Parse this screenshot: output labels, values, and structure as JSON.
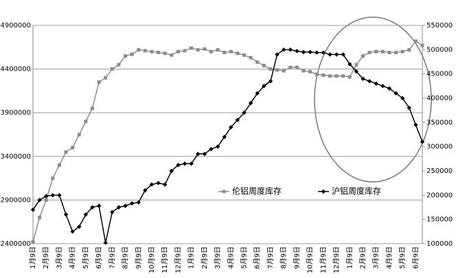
{
  "chart_data": {
    "type": "line",
    "categories": [
      "1月9日",
      null,
      "2月9日",
      null,
      "3月9日",
      null,
      "4月9日",
      null,
      "5月9日",
      null,
      "6月9日",
      null,
      "7月9日",
      null,
      "8月9日",
      null,
      "9月9日",
      null,
      "10月9日",
      null,
      "11月9日",
      null,
      "12月9日",
      null,
      "1月9日",
      null,
      "2月9日",
      null,
      "3月9日",
      null,
      "4月9日",
      null,
      "5月9日",
      null,
      "6月9日",
      null,
      "7月9日",
      null,
      "8月9日",
      null,
      "9月9日",
      null,
      "10月9日",
      null,
      "11月9日",
      null,
      "12月9日",
      null,
      "1月9日",
      null,
      "2月9日",
      null,
      "3月9日",
      null,
      "4月9日",
      null,
      "5月9日",
      null,
      "6月9日",
      null
    ],
    "series": [
      {
        "name": "伦铝周度库存",
        "color": "#8c8c8c",
        "marker": "square",
        "values": [
          2420000,
          2700000,
          2900000,
          3150000,
          3300000,
          3450000,
          3500000,
          3650000,
          3800000,
          3950000,
          4250000,
          4300000,
          4400000,
          4450000,
          4550000,
          4570000,
          4620000,
          4610000,
          4600000,
          4590000,
          4580000,
          4560000,
          4600000,
          4610000,
          4640000,
          4620000,
          4630000,
          4600000,
          4620000,
          4590000,
          4600000,
          4580000,
          4560000,
          4530000,
          4480000,
          4440000,
          4400000,
          4390000,
          4380000,
          4420000,
          4420000,
          4380000,
          4370000,
          4340000,
          4330000,
          4320000,
          4320000,
          4320000,
          4310000,
          4450000,
          4550000,
          4590000,
          4600000,
          4600000,
          4590000,
          4590000,
          4600000,
          4620000,
          4720000,
          4670000
        ]
      },
      {
        "name": "沪铝周度库存",
        "color": "#000000",
        "marker": "diamond",
        "axis": "y2",
        "values": [
          170000,
          190000,
          198000,
          200000,
          200000,
          160000,
          125000,
          135000,
          160000,
          175000,
          178000,
          102000,
          165000,
          175000,
          178000,
          183000,
          185000,
          210000,
          222000,
          225000,
          222000,
          250000,
          262000,
          265000,
          265000,
          285000,
          285000,
          295000,
          300000,
          320000,
          340000,
          355000,
          370000,
          390000,
          410000,
          425000,
          435000,
          490000,
          500000,
          500000,
          497000,
          495000,
          495000,
          494000,
          494000,
          490000,
          490000,
          490000,
          470000,
          455000,
          440000,
          435000,
          430000,
          425000,
          420000,
          410000,
          400000,
          380000,
          345000,
          310000
        ]
      }
    ],
    "ylim": [
      2400000,
      4900000
    ],
    "yticks": [
      2400000,
      2900000,
      3400000,
      3900000,
      4400000,
      4900000
    ],
    "y2lim": [
      100000,
      550000
    ],
    "y2ticks": [
      100000,
      150000,
      200000,
      250000,
      300000,
      350000,
      400000,
      450000,
      500000,
      550000
    ],
    "grid": true
  }
}
